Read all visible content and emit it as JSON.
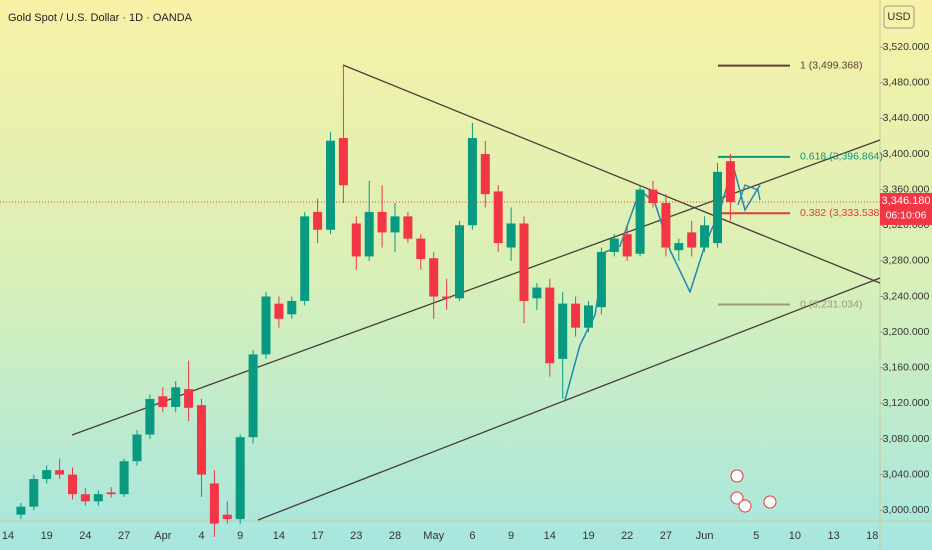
{
  "chart_data": {
    "type": "candlestick",
    "title": "Gold Spot / U.S. Dollar · 1D · OANDA",
    "currency": "USD",
    "categories": [
      "14",
      null,
      null,
      "19",
      null,
      null,
      "24",
      null,
      null,
      "27",
      null,
      null,
      "Apr",
      null,
      null,
      "4",
      null,
      null,
      "9",
      null,
      null,
      "14",
      null,
      null,
      "17",
      null,
      null,
      "23",
      null,
      null,
      "28",
      null,
      null,
      "May",
      null,
      null,
      "6",
      null,
      null,
      "9",
      null,
      null,
      "14",
      null,
      null,
      "19",
      null,
      null,
      "22",
      null,
      null,
      "27",
      null,
      null,
      "Jun",
      null,
      null,
      null,
      "5",
      null,
      null,
      "10",
      null,
      null,
      "13",
      null,
      null,
      "18"
    ],
    "open": [
      null,
      2995,
      3004,
      3035,
      3045,
      3040,
      3018,
      3010,
      3020,
      3018,
      3055,
      3085,
      3128,
      3116,
      3136,
      3118,
      3030,
      2995,
      2990,
      3082,
      3175,
      3232,
      3220,
      3235,
      3335,
      3315,
      3418,
      3322,
      3285,
      3335,
      3312,
      3330,
      3305,
      3283,
      3240,
      3238,
      3320,
      3400,
      3358,
      3295,
      3322,
      3238,
      3250,
      3170,
      3232,
      3205,
      3228,
      3290,
      3310,
      3288,
      3360,
      3345,
      3292,
      3312,
      3295,
      3300,
      3392,
      null,
      null,
      null,
      null,
      null,
      null,
      null,
      null,
      null,
      null,
      null
    ],
    "high": [
      null,
      3008,
      3040,
      3050,
      3058,
      3048,
      3025,
      3022,
      3026,
      3058,
      3090,
      3130,
      3138,
      3145,
      3168,
      3125,
      3045,
      3010,
      3085,
      3180,
      3245,
      3240,
      3240,
      3335,
      3350,
      3425,
      3500,
      3330,
      3370,
      3365,
      3345,
      3335,
      3310,
      3290,
      3260,
      3325,
      3435,
      3415,
      3365,
      3340,
      3330,
      3255,
      3260,
      3245,
      3240,
      3235,
      3295,
      3310,
      3320,
      3365,
      3370,
      3355,
      3305,
      3325,
      3330,
      3390,
      3400,
      null,
      null,
      null,
      null,
      null,
      null,
      null,
      null,
      null,
      null,
      null
    ],
    "low": [
      null,
      2990,
      3000,
      3030,
      3035,
      3012,
      3005,
      3005,
      3014,
      3015,
      3050,
      3080,
      3110,
      3110,
      3100,
      3015,
      2970,
      2985,
      2985,
      3075,
      3170,
      3205,
      3215,
      3230,
      3300,
      3310,
      3345,
      3270,
      3280,
      3295,
      3290,
      3300,
      3270,
      3215,
      3225,
      3235,
      3315,
      3340,
      3290,
      3280,
      3210,
      3225,
      3150,
      3125,
      3195,
      3200,
      3220,
      3285,
      3280,
      3285,
      3340,
      3285,
      3280,
      3285,
      3290,
      3295,
      3325,
      null,
      null,
      null,
      null,
      null,
      null,
      null,
      null,
      null,
      null,
      null
    ],
    "close": [
      null,
      3004,
      3035,
      3045,
      3040,
      3018,
      3010,
      3018,
      3018,
      3055,
      3085,
      3125,
      3116,
      3138,
      3115,
      3040,
      2985,
      2990,
      3082,
      3175,
      3240,
      3215,
      3235,
      3330,
      3315,
      3415,
      3365,
      3285,
      3335,
      3312,
      3330,
      3305,
      3282,
      3240,
      3238,
      3320,
      3418,
      3355,
      3300,
      3322,
      3235,
      3250,
      3165,
      3232,
      3205,
      3230,
      3290,
      3305,
      3285,
      3360,
      3345,
      3295,
      3300,
      3295,
      3320,
      3380,
      3346,
      null,
      null,
      null,
      null,
      null,
      null,
      null,
      null,
      null,
      null,
      null
    ],
    "up_color": "#089981",
    "down_color": "#f23645",
    "ylim": [
      2989,
      3573
    ],
    "yticks": [
      {
        "value": 3000,
        "label": "3,000.000"
      },
      {
        "value": 3040,
        "label": "3,040.000"
      },
      {
        "value": 3080,
        "label": "3,080.000"
      },
      {
        "value": 3120,
        "label": "3,120.000"
      },
      {
        "value": 3160,
        "label": "3,160.000"
      },
      {
        "value": 3200,
        "label": "3,200.000"
      },
      {
        "value": 3240,
        "label": "3,240.000"
      },
      {
        "value": 3280,
        "label": "3,280.000"
      },
      {
        "value": 3320,
        "label": "3,320.000"
      },
      {
        "value": 3360,
        "label": "3,360.000"
      },
      {
        "value": 3400,
        "label": "3,400.000"
      },
      {
        "value": 3440,
        "label": "3,440.000"
      },
      {
        "value": 3480,
        "label": "3,480.000"
      },
      {
        "value": 3520,
        "label": "3,520.000"
      }
    ],
    "last_price": {
      "value": 3346.18,
      "label": "3,346.180"
    },
    "countdown": "06:10:06",
    "fib_levels": [
      {
        "label": "1 (3,499.368)",
        "value": 3499.368,
        "color": "#5d4037"
      },
      {
        "label": "0.618 (3,396.864)",
        "value": 3396.864,
        "color": "#089981"
      },
      {
        "label": "0.382 (3,333.538)",
        "value": 3333.538,
        "color": "#e53935"
      },
      {
        "label": "0 (3,231.034)",
        "value": 3231.034,
        "color": "#9a9a7a"
      }
    ]
  }
}
